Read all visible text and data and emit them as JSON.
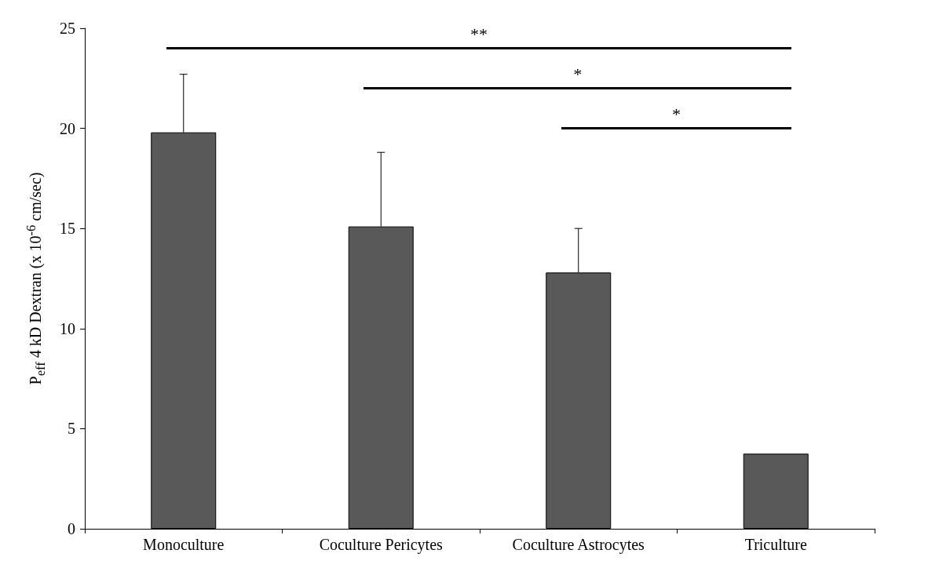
{
  "chart_data": {
    "type": "bar",
    "ylabel": "P$_{eff}$ 4 kD Dextran (x 10$^{-6}$ cm/sec)",
    "categories": [
      "Monoculture",
      "Coculture Pericytes",
      "Coculture Astrocytes",
      "Triculture"
    ],
    "values": [
      19.8,
      15.1,
      12.8,
      3.75
    ],
    "color": "#595959",
    "errors": [
      2.9,
      3.7,
      2.2,
      null
    ],
    "ylim": [
      0,
      25
    ],
    "yticks": [
      0,
      5,
      10,
      15,
      20,
      25
    ],
    "grid": false,
    "annotations": [
      "**",
      "*",
      "*"
    ]
  }
}
